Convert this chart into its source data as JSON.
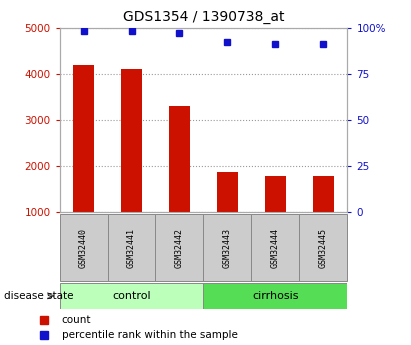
{
  "title": "GDS1354 / 1390738_at",
  "samples": [
    "GSM32440",
    "GSM32441",
    "GSM32442",
    "GSM32443",
    "GSM32444",
    "GSM32445"
  ],
  "counts": [
    4200,
    4100,
    3300,
    1880,
    1790,
    1790
  ],
  "percentile_ranks": [
    98,
    98,
    97,
    92,
    91,
    91
  ],
  "groups": [
    "control",
    "control",
    "control",
    "cirrhosis",
    "cirrhosis",
    "cirrhosis"
  ],
  "ylim_left": [
    1000,
    5000
  ],
  "ylim_right": [
    0,
    100
  ],
  "yticks_left": [
    1000,
    2000,
    3000,
    4000,
    5000
  ],
  "yticks_right": [
    0,
    25,
    50,
    75,
    100
  ],
  "bar_color": "#cc1100",
  "dot_color": "#1111cc",
  "control_color": "#bbffbb",
  "cirrhosis_color": "#55dd55",
  "sample_box_color": "#cccccc",
  "grid_color": "#999999",
  "left_tick_color": "#cc1100",
  "right_tick_color": "#1111cc",
  "title_fontsize": 10,
  "label_fontsize": 7.5,
  "legend_fontsize": 7.5
}
